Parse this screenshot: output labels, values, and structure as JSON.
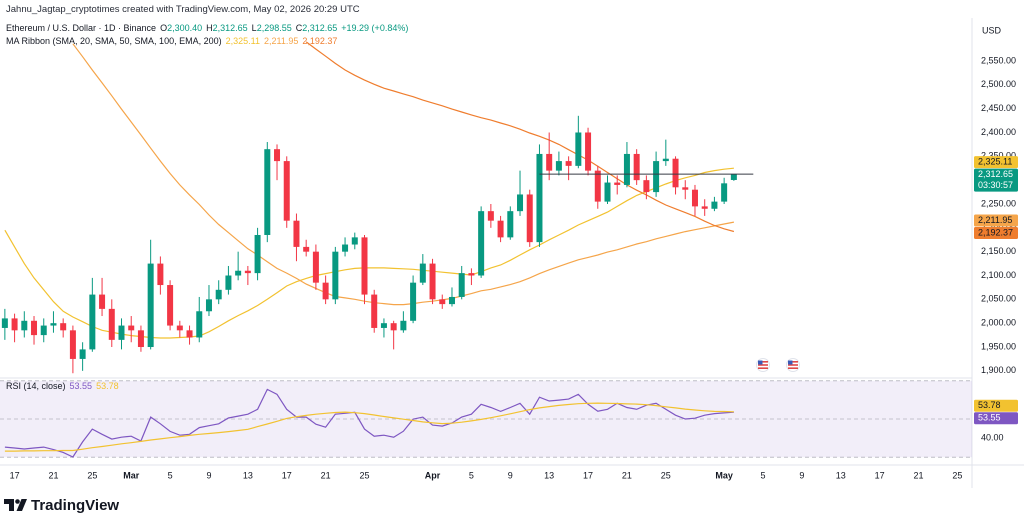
{
  "header": {
    "title": "Jahnu_Jagtap_cryptotimes created with TradingView.com, May 02, 2026 20:29 UTC"
  },
  "branding": "TradingView",
  "chart_data": {
    "type": "candlestick",
    "symbol": "Ethereum / U.S. Dollar · 1D · Binance",
    "ohlc_legend": [
      {
        "key": "O",
        "value": "2,300.40"
      },
      {
        "key": "H",
        "value": "2,312.65"
      },
      {
        "key": "L",
        "value": "2,298.55"
      },
      {
        "key": "C",
        "value": "2,312.65"
      }
    ],
    "change": "+19.29 (+0.84%)",
    "currency": "USD",
    "countdown": "03:30:57",
    "categories": [
      null,
      "17",
      null,
      null,
      null,
      "21",
      null,
      null,
      null,
      "25",
      null,
      null,
      null,
      "Mar",
      null,
      null,
      null,
      "5",
      null,
      null,
      null,
      "9",
      null,
      null,
      null,
      "13",
      null,
      null,
      null,
      "17",
      null,
      null,
      null,
      "21",
      null,
      null,
      null,
      "25",
      null,
      null,
      null,
      null,
      null,
      null,
      "Apr",
      null,
      null,
      null,
      "5",
      null,
      null,
      null,
      "9",
      null,
      null,
      null,
      "13",
      null,
      null,
      null,
      "17",
      null,
      null,
      null,
      "21",
      null,
      null,
      null,
      "25",
      null,
      null,
      null,
      null,
      null,
      "May",
      null,
      null,
      null,
      "5",
      null,
      null,
      null,
      "9",
      null,
      null,
      null,
      "13",
      null,
      null,
      null,
      "17",
      null,
      null,
      null,
      "21",
      null,
      null,
      null,
      "25",
      null
    ],
    "candles": {
      "up_color": "#089981",
      "down_color": "#f23645",
      "last_label": "2,312.65",
      "open": [
        1990,
        2010,
        1985,
        2005,
        1975,
        1995,
        2000,
        1985,
        1925,
        1945,
        2060,
        2030,
        1965,
        1995,
        1985,
        1950,
        2125,
        2080,
        1995,
        1985,
        1970,
        2025,
        2050,
        2070,
        2100,
        2110,
        2105,
        2185,
        2365,
        2340,
        2215,
        2160,
        2150,
        2085,
        2050,
        2150,
        2165,
        2180,
        2060,
        1990,
        2000,
        1985,
        2005,
        2085,
        2125,
        2050,
        2040,
        2055,
        2105,
        2100,
        2235,
        2215,
        2180,
        2235,
        2270,
        2170,
        2355,
        2320,
        2340,
        2330,
        2400,
        2320,
        2255,
        2295,
        2290,
        2355,
        2300,
        2275,
        2340,
        2345,
        2285,
        2280,
        2245,
        2240,
        2255,
        2300.4,
        null,
        null,
        null,
        null,
        null,
        null,
        null,
        null,
        null,
        null,
        null,
        null,
        null,
        null,
        null,
        null,
        null,
        null,
        null,
        null,
        null,
        null,
        null,
        null
      ],
      "high": [
        2030,
        2020,
        2025,
        2015,
        2010,
        2025,
        2010,
        1995,
        1960,
        2095,
        2095,
        2050,
        2010,
        2015,
        1995,
        2175,
        2140,
        2090,
        2005,
        1995,
        2055,
        2080,
        2090,
        2120,
        2150,
        2120,
        2200,
        2380,
        2375,
        2350,
        2230,
        2175,
        2165,
        2100,
        2160,
        2180,
        2190,
        2185,
        2070,
        2010,
        2005,
        2025,
        2100,
        2145,
        2135,
        2060,
        2075,
        2120,
        2115,
        2245,
        2250,
        2225,
        2245,
        2320,
        2280,
        2375,
        2400,
        2360,
        2350,
        2435,
        2410,
        2330,
        2310,
        2310,
        2380,
        2365,
        2310,
        2360,
        2385,
        2350,
        2300,
        2290,
        2260,
        2265,
        2305,
        2312.65,
        null,
        null,
        null,
        null,
        null,
        null,
        null,
        null,
        null,
        null,
        null,
        null,
        null,
        null,
        null,
        null,
        null,
        null,
        null,
        null,
        null,
        null,
        null,
        null
      ],
      "low": [
        1965,
        1960,
        1970,
        1955,
        1960,
        1980,
        1970,
        1895,
        1900,
        1940,
        2015,
        1950,
        1945,
        1960,
        1940,
        1945,
        2060,
        1985,
        1970,
        1955,
        1960,
        2015,
        2040,
        2060,
        2090,
        2080,
        2090,
        2170,
        2300,
        2200,
        2130,
        2140,
        2070,
        2040,
        2040,
        2140,
        2155,
        2040,
        1980,
        1970,
        1945,
        1980,
        2000,
        2080,
        2040,
        2030,
        2035,
        2050,
        2080,
        2095,
        2200,
        2170,
        2175,
        2225,
        2160,
        2160,
        2300,
        2310,
        2300,
        2325,
        2310,
        2240,
        2250,
        2270,
        2285,
        2290,
        2260,
        2265,
        2330,
        2270,
        2260,
        2225,
        2225,
        2235,
        2250,
        2298.55,
        null,
        null,
        null,
        null,
        null,
        null,
        null,
        null,
        null,
        null,
        null,
        null,
        null,
        null,
        null,
        null,
        null,
        null,
        null,
        null,
        null,
        null,
        null,
        null
      ],
      "close": [
        2010,
        1985,
        2005,
        1975,
        1995,
        2000,
        1985,
        1925,
        1945,
        2060,
        2030,
        1965,
        1995,
        1985,
        1950,
        2125,
        2080,
        1995,
        1985,
        1970,
        2025,
        2050,
        2070,
        2100,
        2110,
        2105,
        2185,
        2365,
        2340,
        2215,
        2160,
        2150,
        2085,
        2050,
        2150,
        2165,
        2180,
        2060,
        1990,
        2000,
        1985,
        2005,
        2085,
        2125,
        2050,
        2040,
        2055,
        2105,
        2100,
        2235,
        2215,
        2180,
        2235,
        2270,
        2170,
        2355,
        2320,
        2340,
        2330,
        2400,
        2320,
        2255,
        2295,
        2290,
        2355,
        2300,
        2275,
        2340,
        2345,
        2285,
        2280,
        2245,
        2240,
        2255,
        2293.36,
        2312.65,
        null,
        null,
        null,
        null,
        null,
        null,
        null,
        null,
        null,
        null,
        null,
        null,
        null,
        null,
        null,
        null,
        null,
        null,
        null,
        null,
        null,
        null,
        null,
        null
      ]
    },
    "ma_ribbon": {
      "label": "MA Ribbon (SMA, 20, SMA, 50, SMA, 100, EMA, 200)",
      "series": [
        {
          "color": "#f2c230",
          "last_label": "2,325.11",
          "values": [
            2195,
            2160,
            2125,
            2095,
            2070,
            2045,
            2025,
            2013,
            2003,
            1993,
            1985,
            1981,
            1977,
            1974,
            1972,
            1970,
            1969,
            1969,
            1970,
            1971,
            1973,
            1982,
            1993,
            2005,
            2016,
            2026,
            2037,
            2050,
            2064,
            2078,
            2087,
            2094,
            2100,
            2104,
            2108,
            2112,
            2115,
            2116,
            2116,
            2116,
            2115,
            2114,
            2113,
            2111,
            2109,
            2107,
            2105,
            2103,
            2101,
            2108,
            2116,
            2122,
            2132,
            2143,
            2154,
            2164,
            2175,
            2185,
            2195,
            2206,
            2215,
            2224,
            2233,
            2245,
            2257,
            2268,
            2276,
            2284,
            2292,
            2299,
            2305,
            2310,
            2316,
            2320,
            2323,
            2325.11,
            null,
            null,
            null,
            null,
            null,
            null,
            null,
            null,
            null,
            null,
            null,
            null,
            null,
            null,
            null,
            null,
            null,
            null,
            null,
            null,
            null,
            null,
            null,
            null
          ]
        },
        {
          "color": "#f5a54a",
          "last_label": "2,211.95",
          "values": [
            null,
            null,
            null,
            null,
            null,
            null,
            null,
            2586,
            2559,
            2531,
            2504,
            2477,
            2449,
            2422,
            2395,
            2367,
            2340,
            2314,
            2290,
            2269,
            2249,
            2227,
            2207,
            2190,
            2173,
            2156,
            2143,
            2129,
            2115,
            2105,
            2094,
            2082,
            2073,
            2064,
            2056,
            2053,
            2050,
            2046,
            2043,
            2041,
            2039,
            2039,
            2041,
            2044,
            2046,
            2049,
            2052,
            2057,
            2062,
            2068,
            2071,
            2076,
            2081,
            2087,
            2095,
            2104,
            2112,
            2119,
            2126,
            2133,
            2138,
            2143,
            2149,
            2154,
            2160,
            2166,
            2171,
            2177,
            2182,
            2187,
            2192,
            2196,
            2200,
            2204,
            2208,
            2211.95,
            null,
            null,
            null,
            null,
            null,
            null,
            null,
            null,
            null,
            null,
            null,
            null,
            null,
            null,
            null,
            null,
            null,
            null,
            null,
            null,
            null,
            null,
            null,
            null
          ]
        },
        {
          "color": "#ef7d2e",
          "last_label": "2,192.37",
          "values": [
            null,
            null,
            null,
            null,
            null,
            null,
            null,
            null,
            null,
            null,
            null,
            null,
            null,
            null,
            null,
            null,
            null,
            null,
            null,
            null,
            null,
            null,
            null,
            null,
            null,
            null,
            null,
            null,
            null,
            null,
            null,
            2590,
            2575,
            2560,
            2545,
            2531,
            2520,
            2510,
            2501,
            2493,
            2487,
            2481,
            2475,
            2468,
            2462,
            2456,
            2449,
            2443,
            2437,
            2431,
            2426,
            2420,
            2414,
            2407,
            2399,
            2392,
            2384,
            2375,
            2364,
            2353,
            2342,
            2329,
            2316,
            2303,
            2290,
            2279,
            2269,
            2258,
            2248,
            2240,
            2232,
            2224,
            2214,
            2205,
            2198,
            2192.37,
            null,
            null,
            null,
            null,
            null,
            null,
            null,
            null,
            null,
            null,
            null,
            null,
            null,
            null,
            null,
            null,
            null,
            null,
            null,
            null,
            null,
            null,
            null,
            null
          ]
        }
      ]
    },
    "ylim": [
      1885,
      2615
    ],
    "yticks": [
      {
        "value": 1900,
        "label": "1,900.00"
      },
      {
        "value": 1950,
        "label": "1,950.00"
      },
      {
        "value": 2000,
        "label": "2,000.00"
      },
      {
        "value": 2050,
        "label": "2,050.00"
      },
      {
        "value": 2100,
        "label": "2,100.00"
      },
      {
        "value": 2150,
        "label": "2,150.00"
      },
      {
        "value": 2200,
        "label": "2,200.00"
      },
      {
        "value": 2250,
        "label": "2,250.00"
      },
      {
        "value": 2300,
        "label": "2,300.00"
      },
      {
        "value": 2350,
        "label": "2,350.00"
      },
      {
        "value": 2400,
        "label": "2,400.00"
      },
      {
        "value": 2450,
        "label": "2,450.00"
      },
      {
        "value": 2500,
        "label": "2,500.00"
      },
      {
        "value": 2550,
        "label": "2,550.00"
      }
    ],
    "rsi": {
      "label": "RSI (14, close)",
      "series": [
        {
          "color": "#7e57c2",
          "last_label": "53.55",
          "values": [
            35.3,
            34.8,
            34.3,
            34.8,
            35.3,
            34.0,
            32.5,
            30.1,
            38,
            44.7,
            42.0,
            39.5,
            40.5,
            41.0,
            38.5,
            51.0,
            47.5,
            43.5,
            41.5,
            42.0,
            45.5,
            46.5,
            47.5,
            50.5,
            51.5,
            52.5,
            55.1,
            65.5,
            62.9,
            55.1,
            51.0,
            51.0,
            47.3,
            45.7,
            52.5,
            53.0,
            53.5,
            44.7,
            41.0,
            41.5,
            40.5,
            43.6,
            49.9,
            51.0,
            46.8,
            46.3,
            47.9,
            51.0,
            52.5,
            57.7,
            56.0,
            54.0,
            56.0,
            58.2,
            52.5,
            61.4,
            59.4,
            59.9,
            60.4,
            62.9,
            57.7,
            54.1,
            55.1,
            58.2,
            56.0,
            55.1,
            57.2,
            58.2,
            55.1,
            52.0,
            50.0,
            50.4,
            52.0,
            52.8,
            53.2,
            53.55,
            null,
            null,
            null,
            null,
            null,
            null,
            null,
            null,
            null,
            null,
            null,
            null,
            null,
            null,
            null,
            null,
            null,
            null,
            null,
            null,
            null,
            null,
            null,
            null
          ]
        },
        {
          "color": "#f2c230",
          "last_label": "53.78",
          "values": [
            33.2,
            33.2,
            33.3,
            33.3,
            33.4,
            33.4,
            33.5,
            33.5,
            34.2,
            35.0,
            35.6,
            36.3,
            37.0,
            37.6,
            38.3,
            39.0,
            39.6,
            40.2,
            40.8,
            41.4,
            42.0,
            42.4,
            42.9,
            43.4,
            44.0,
            44.6,
            46.0,
            47.4,
            48.8,
            50.3,
            51.2,
            51.9,
            52.5,
            53.0,
            53.4,
            53.6,
            53.3,
            52.8,
            52.1,
            51.3,
            50.6,
            49.9,
            49.2,
            48.5,
            48.0,
            47.6,
            47.8,
            48.3,
            49.0,
            49.8,
            50.7,
            51.7,
            52.7,
            53.8,
            54.9,
            55.8,
            56.5,
            57.1,
            57.6,
            58.0,
            58.2,
            58.3,
            58.2,
            58.1,
            57.9,
            57.8,
            57.5,
            57.0,
            56.4,
            55.8,
            55.2,
            54.7,
            54.3,
            54.0,
            53.9,
            53.78,
            null,
            null,
            null,
            null,
            null,
            null,
            null,
            null,
            null,
            null,
            null,
            null,
            null,
            null,
            null,
            null,
            null,
            null,
            null,
            null,
            null,
            null,
            null,
            null
          ]
        }
      ],
      "ylim": [
        27.5,
        72.5
      ],
      "yticks": [
        {
          "value": 40,
          "label": "40.00"
        }
      ],
      "band": [
        30,
        70
      ],
      "middle": 50,
      "band_color": "#7e57c2"
    }
  }
}
